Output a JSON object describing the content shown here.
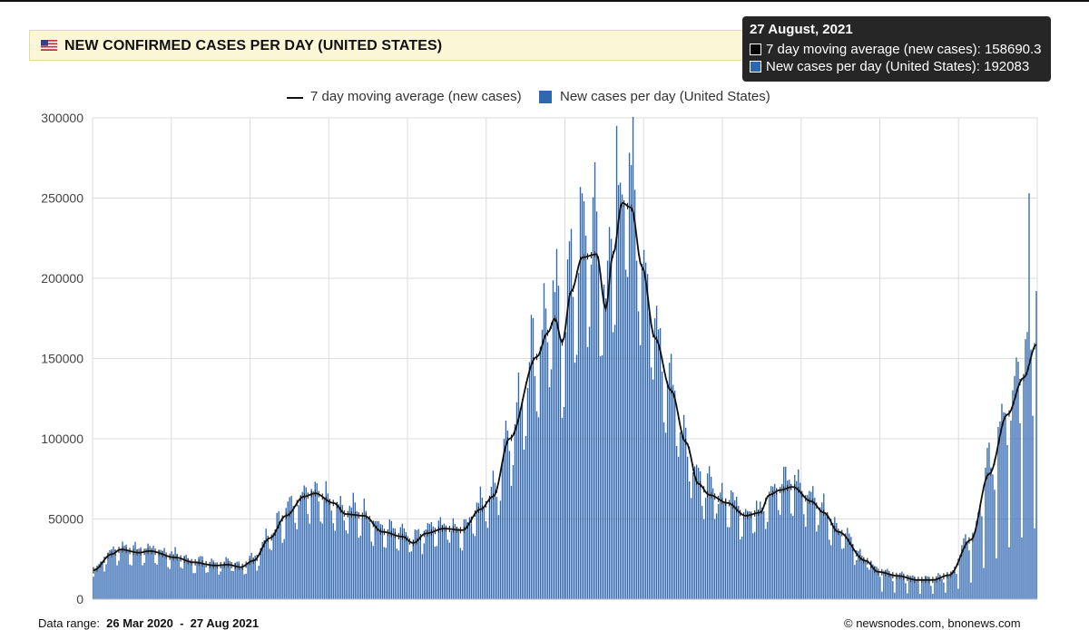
{
  "header": {
    "title": "NEW CONFIRMED CASES PER DAY (UNITED STATES)",
    "flag_icon": "us-flag-icon"
  },
  "legend": {
    "line_label": "7 day moving average (new cases)",
    "bar_label": "New cases per day (United States)"
  },
  "tooltip": {
    "date": "27 August, 2021",
    "line_text": "7 day moving average (new cases): 158690.3",
    "bar_text": "New cases per day (United States): 192083"
  },
  "footer": {
    "range_prefix": "Data range:  ",
    "range_value": "26 Mar 2020  -  27 Aug 2021",
    "credit": "©  newsnodes.com, bnonews.com"
  },
  "colors": {
    "bar": "#2f67b1",
    "line": "#111111",
    "grid": "#dddddd",
    "title_bg": "#fbf7d6"
  },
  "chart_data": {
    "type": "bar",
    "title": "NEW CONFIRMED CASES PER DAY (UNITED STATES)",
    "date_range": [
      "2020-03-26",
      "2021-08-27"
    ],
    "ylim": [
      0,
      300000
    ],
    "yticks": [
      "0",
      "50000",
      "100000",
      "150000",
      "200000",
      "250000",
      "300000"
    ],
    "grid": "vertical and horizontal",
    "legend_position": "top-center",
    "series": [
      {
        "name": "7 day moving average (new cases)",
        "type": "line",
        "keypoints": [
          [
            "2020-03-26",
            18000
          ],
          [
            "2020-04-05",
            28000
          ],
          [
            "2020-04-10",
            31000
          ],
          [
            "2020-04-20",
            29000
          ],
          [
            "2020-04-26",
            30000
          ],
          [
            "2020-05-10",
            26000
          ],
          [
            "2020-05-20",
            23000
          ],
          [
            "2020-06-01",
            21000
          ],
          [
            "2020-06-08",
            21500
          ],
          [
            "2020-06-15",
            20000
          ],
          [
            "2020-06-22",
            24000
          ],
          [
            "2020-07-01",
            38000
          ],
          [
            "2020-07-10",
            52000
          ],
          [
            "2020-07-20",
            64000
          ],
          [
            "2020-07-26",
            66000
          ],
          [
            "2020-08-05",
            60000
          ],
          [
            "2020-08-12",
            53000
          ],
          [
            "2020-08-22",
            52000
          ],
          [
            "2020-09-01",
            42000
          ],
          [
            "2020-09-12",
            39000
          ],
          [
            "2020-09-18",
            35000
          ],
          [
            "2020-09-25",
            41000
          ],
          [
            "2020-10-05",
            44000
          ],
          [
            "2020-10-15",
            43000
          ],
          [
            "2020-10-25",
            56000
          ],
          [
            "2020-11-01",
            64000
          ],
          [
            "2020-11-10",
            100000
          ],
          [
            "2020-11-25",
            151000
          ],
          [
            "2020-12-01",
            166000
          ],
          [
            "2020-12-05",
            175000
          ],
          [
            "2020-12-09",
            160000
          ],
          [
            "2020-12-14",
            192000
          ],
          [
            "2020-12-20",
            213000
          ],
          [
            "2020-12-28",
            215000
          ],
          [
            "2021-01-02",
            181000
          ],
          [
            "2021-01-06",
            215000
          ],
          [
            "2021-01-11",
            247000
          ],
          [
            "2021-01-16",
            244000
          ],
          [
            "2021-01-22",
            207000
          ],
          [
            "2021-01-29",
            163000
          ],
          [
            "2021-02-07",
            130000
          ],
          [
            "2021-02-15",
            98000
          ],
          [
            "2021-02-22",
            72000
          ],
          [
            "2021-02-28",
            65000
          ],
          [
            "2021-03-10",
            60000
          ],
          [
            "2021-03-20",
            52000
          ],
          [
            "2021-03-28",
            54000
          ],
          [
            "2021-04-02",
            65000
          ],
          [
            "2021-04-08",
            68000
          ],
          [
            "2021-04-15",
            70000
          ],
          [
            "2021-04-25",
            61000
          ],
          [
            "2021-05-02",
            54000
          ],
          [
            "2021-05-10",
            42000
          ],
          [
            "2021-05-25",
            24000
          ],
          [
            "2021-06-01",
            17000
          ],
          [
            "2021-06-12",
            14500
          ],
          [
            "2021-06-22",
            12000
          ],
          [
            "2021-07-01",
            12000
          ],
          [
            "2021-07-10",
            15000
          ],
          [
            "2021-07-22",
            37000
          ],
          [
            "2021-08-01",
            78000
          ],
          [
            "2021-08-11",
            115000
          ],
          [
            "2021-08-20",
            138000
          ],
          [
            "2021-08-27",
            158690
          ]
        ]
      },
      {
        "name": "New cases per day (United States)",
        "type": "bar",
        "note": "daily values follow the moving average with weekly oscillation",
        "peaks": [
          [
            "2021-01-08",
            295000
          ],
          [
            "2021-08-23",
            253000
          ],
          [
            "2021-08-27",
            192083
          ]
        ]
      }
    ]
  }
}
